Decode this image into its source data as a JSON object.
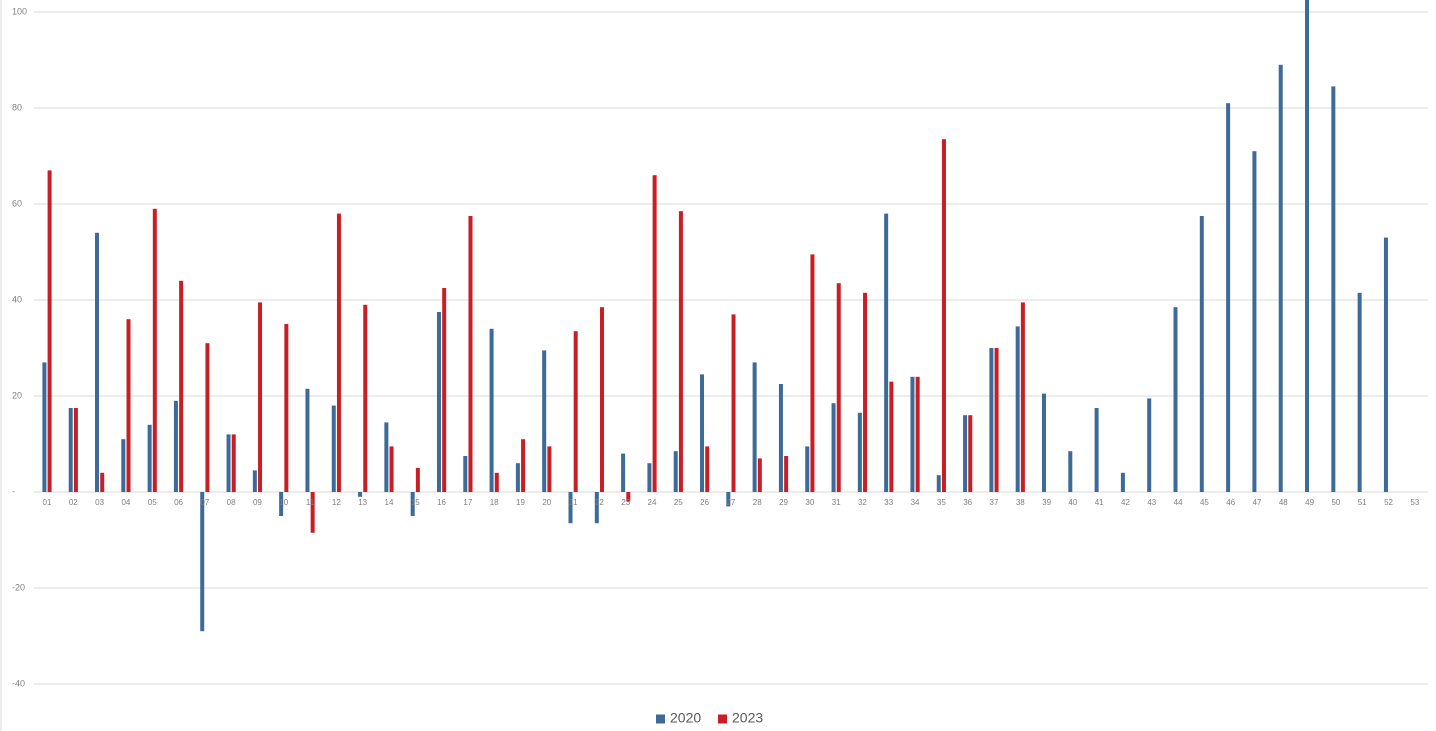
{
  "chart_data": {
    "type": "bar",
    "categories": [
      "01",
      "02",
      "03",
      "04",
      "05",
      "06",
      "07",
      "08",
      "09",
      "10",
      "11",
      "12",
      "13",
      "14",
      "15",
      "16",
      "17",
      "18",
      "19",
      "20",
      "21",
      "22",
      "23",
      "24",
      "25",
      "26",
      "27",
      "28",
      "29",
      "30",
      "31",
      "32",
      "33",
      "34",
      "35",
      "36",
      "37",
      "38",
      "39",
      "40",
      "41",
      "42",
      "43",
      "44",
      "45",
      "46",
      "47",
      "48",
      "49",
      "50",
      "51",
      "52",
      "53"
    ],
    "series": [
      {
        "name": "2020",
        "color": "#3d6a98",
        "values": [
          27,
          17.5,
          54,
          11,
          14,
          19,
          -29,
          12,
          4.5,
          -5,
          21.5,
          18,
          -1,
          14.5,
          -5,
          37.5,
          7.5,
          34,
          6,
          29.5,
          -6.5,
          -6.5,
          8,
          6,
          8.5,
          24.5,
          -3,
          27,
          22.5,
          9.5,
          18.5,
          16.5,
          58,
          24,
          3.5,
          16,
          30,
          34.5,
          20.5,
          8.5,
          17.5,
          4,
          19.5,
          38.5,
          57.5,
          81,
          71,
          89,
          105,
          84.5,
          41.5,
          53,
          null
        ]
      },
      {
        "name": "2023",
        "color": "#c81e24",
        "values": [
          67,
          17.5,
          4,
          36,
          59,
          44,
          31,
          12,
          39.5,
          35,
          -8.5,
          58,
          39,
          9.5,
          5,
          42.5,
          57.5,
          4,
          11,
          9.5,
          33.5,
          38.5,
          -2,
          66,
          58.5,
          9.5,
          37,
          7,
          7.5,
          49.5,
          43.5,
          41.5,
          23,
          24,
          73.5,
          16,
          30,
          39.5,
          null,
          null,
          null,
          null,
          null,
          null,
          null,
          null,
          null,
          null,
          null,
          null,
          null,
          null,
          null
        ]
      }
    ],
    "ylim": [
      -42,
      102.5
    ],
    "yticks": [
      {
        "value": -40,
        "label": "-40"
      },
      {
        "value": -20,
        "label": "-20"
      },
      {
        "value": 0,
        "label": "-"
      },
      20,
      40,
      60,
      80,
      100
    ],
    "grid": true,
    "legend": "bottom"
  }
}
